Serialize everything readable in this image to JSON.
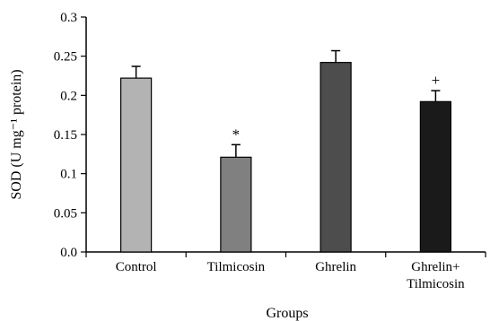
{
  "chart_data": {
    "type": "bar",
    "categories": [
      [
        "Control"
      ],
      [
        "Tilmicosin"
      ],
      [
        "Ghrelin"
      ],
      [
        "Ghrelin+",
        "Tilmicosin"
      ]
    ],
    "values": [
      0.222,
      0.121,
      0.242,
      0.192
    ],
    "errors": [
      0.015,
      0.016,
      0.015,
      0.014
    ],
    "annotations": [
      "",
      "*",
      "",
      "+"
    ],
    "bar_colors": [
      "#b3b3b3",
      "#808080",
      "#4d4d4d",
      "#1a1a1a"
    ],
    "xlabel": "Groups",
    "ylabel": "SOD (U mg⁻¹ protein)",
    "ylim": [
      0,
      0.3
    ],
    "yticks": [
      "0.0",
      "0.05",
      "0.1",
      "0.15",
      "0.2",
      "0.25",
      "0.3"
    ],
    "grid": false
  }
}
